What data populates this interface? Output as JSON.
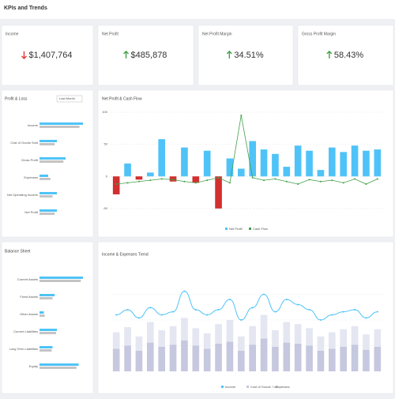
{
  "header": {
    "title": "KPIs and Trends"
  },
  "kpis": [
    {
      "title": "Income",
      "value": "$1,407,764",
      "trend": "down"
    },
    {
      "title": "Net Profit",
      "value": "$485,878",
      "trend": "up"
    },
    {
      "title": "Net Profit Margin",
      "value": "34.51%",
      "trend": "up"
    },
    {
      "title": "Gross Profit Margin",
      "value": "58.43%",
      "trend": "up"
    }
  ],
  "profit_loss": {
    "title": "Profit & Loss",
    "period": "Last Month",
    "categories": [
      "Income",
      "Cost of Goods Sold",
      "Gross Profit",
      "Expenses",
      "Net Operating Income",
      "Net Profit"
    ],
    "xlim": [
      0,
      100
    ],
    "series": [
      {
        "color": "#4fc3f7",
        "values": [
          100,
          40,
          60,
          20,
          40,
          40
        ]
      },
      {
        "color": "#c4c4c4",
        "values": [
          92,
          35,
          55,
          25,
          30,
          35
        ]
      }
    ]
  },
  "net_profit_chart": {
    "type": "bar",
    "title": "Net Profit & Cash Flow",
    "ylim": [
      -60,
      100
    ],
    "yticks": [
      -50,
      0,
      50,
      100
    ],
    "grid": true,
    "series": [
      {
        "name": "Net Profit",
        "type": "bar",
        "color": "#4fc3f7",
        "negative_color": "#d32f2f",
        "values": [
          -28,
          20,
          -5,
          6,
          58,
          -8,
          45,
          -10,
          40,
          -50,
          28,
          12,
          55,
          42,
          35,
          15,
          48,
          40,
          10,
          45,
          38,
          48,
          40,
          42
        ]
      },
      {
        "name": "Cash Flow",
        "type": "line",
        "color": "#43a047",
        "values": [
          -12,
          -10,
          -8,
          -6,
          -4,
          -5,
          -8,
          -10,
          -6,
          -2,
          -10,
          95,
          -2,
          -6,
          -4,
          -8,
          -12,
          -5,
          -8,
          -6,
          -10,
          -4,
          -12,
          -4
        ]
      }
    ]
  },
  "balance_sheet": {
    "title": "Balance Sheet",
    "categories": [
      "Current Assets",
      "Fixed Assets",
      "Other Assets",
      "Current Liabilities",
      "Long Term Liabilities",
      "Equity"
    ],
    "xlim": [
      0,
      100
    ],
    "series": [
      {
        "color": "#4fc3f7",
        "values": [
          100,
          35,
          10,
          40,
          30,
          90
        ]
      },
      {
        "color": "#c4c4c4",
        "values": [
          95,
          30,
          12,
          38,
          28,
          85
        ]
      }
    ]
  },
  "income_trend": {
    "type": "stacked_bar_line",
    "title": "Income & Expenses Trend",
    "ylim": [
      0,
      100
    ],
    "grid": true,
    "series": [
      {
        "name": "Income",
        "type": "line",
        "color": "#4fc3f7",
        "values": [
          55,
          60,
          52,
          62,
          55,
          58,
          78,
          60,
          55,
          60,
          70,
          50,
          62,
          75,
          58,
          70,
          65,
          60,
          50,
          55,
          58,
          60,
          52,
          58
        ]
      },
      {
        "name": "Cost of Goods Sold",
        "type": "bar",
        "color": "#c5c8de",
        "values": [
          22,
          25,
          20,
          28,
          24,
          26,
          30,
          25,
          22,
          27,
          29,
          20,
          26,
          32,
          24,
          28,
          27,
          25,
          20,
          22,
          24,
          26,
          21,
          24
        ]
      },
      {
        "name": "Expenses",
        "type": "bar",
        "color": "#e4e6f1",
        "values": [
          16,
          18,
          14,
          20,
          16,
          18,
          22,
          17,
          15,
          19,
          21,
          14,
          18,
          23,
          16,
          20,
          19,
          17,
          14,
          16,
          17,
          18,
          15,
          17
        ]
      }
    ]
  }
}
